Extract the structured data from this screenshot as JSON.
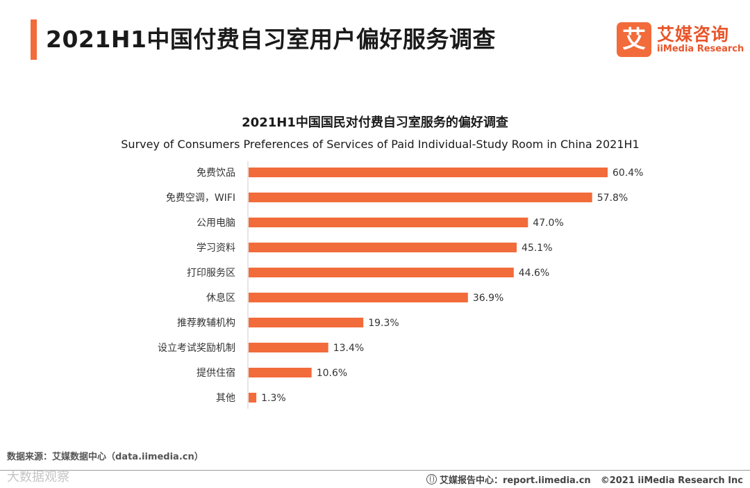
{
  "header": {
    "title": "2021H1中国付费自习室用户偏好服务调查",
    "accent_color": "#f26b3a"
  },
  "logo": {
    "mark": "艾",
    "name_cn": "艾媒咨询",
    "name_en": "iiMedia Research",
    "color": "#e8552a"
  },
  "chart_data": {
    "type": "bar",
    "orientation": "horizontal",
    "title": "2021H1中国国民对付费自习室服务的偏好调查",
    "subtitle": "Survey of Consumers Preferences of Services of Paid Individual-Study Room in China 2021H1",
    "categories": [
      "免费饮品",
      "免费空调，WIFI",
      "公用电脑",
      "学习资料",
      "打印服务区",
      "休息区",
      "推荐教辅机构",
      "设立考试奖励机制",
      "提供住宿",
      "其他"
    ],
    "values": [
      60.4,
      57.8,
      47.0,
      45.1,
      44.6,
      36.9,
      19.3,
      13.4,
      10.6,
      1.3
    ],
    "value_labels": [
      "60.4%",
      "57.8%",
      "47.0%",
      "45.1%",
      "44.6%",
      "36.9%",
      "19.3%",
      "13.4%",
      "10.6%",
      "1.3%"
    ],
    "unit": "%",
    "xlim": [
      0,
      60.4
    ],
    "bar_color": "#f26b3a",
    "grid": false,
    "legend": "none"
  },
  "footer": {
    "source": "数据来源：艾媒数据中心（data.iimedia.cn）",
    "report_site": "艾媒报告中心：report.iimedia.cn",
    "copyright": "©2021  iiMedia Research  Inc",
    "watermark": "大数据观察"
  }
}
